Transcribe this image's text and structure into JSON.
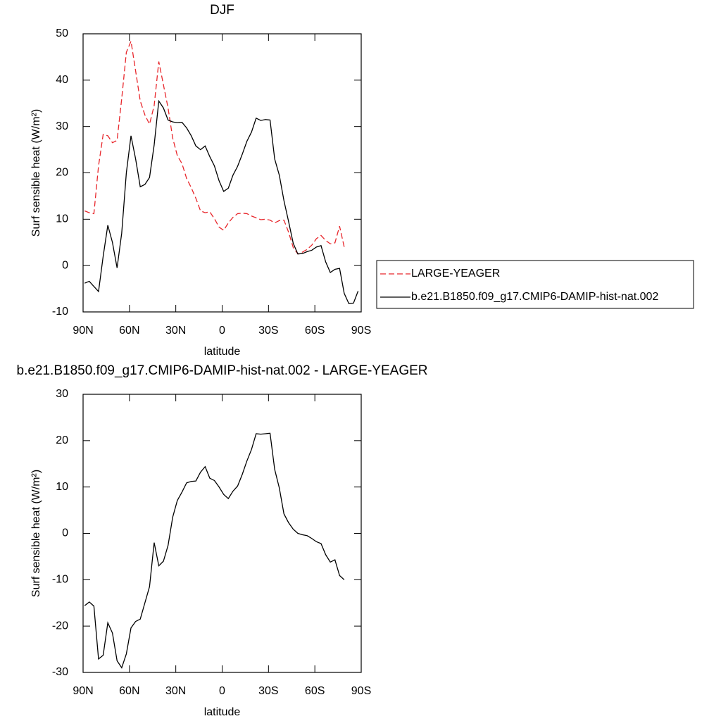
{
  "chart_data": [
    {
      "type": "line",
      "title": "DJF",
      "xlabel": "latitude",
      "ylabel": "Surf sensible heat (W/m²)",
      "x": [
        89,
        86,
        83,
        80,
        77,
        74,
        71,
        68,
        65,
        62,
        59,
        56,
        53,
        50,
        47,
        44,
        41,
        38,
        35,
        32,
        29,
        26,
        23,
        20,
        17,
        14,
        11,
        8,
        5,
        2,
        -1,
        -4,
        -7,
        -10,
        -13,
        -16,
        -19,
        -22,
        -25,
        -28,
        -31,
        -34,
        -37,
        -40,
        -43,
        -46,
        -49,
        -52,
        -55,
        -58,
        -61,
        -64,
        -67,
        -70,
        -73,
        -76,
        -79,
        -82,
        -85,
        -88
      ],
      "series": [
        {
          "name": "LARGE-YEAGER",
          "color": "#e8262b",
          "dash": true,
          "values": [
            11.8,
            11.4,
            11.2,
            21.5,
            28.3,
            28,
            26.5,
            27,
            36,
            46,
            48.4,
            42,
            35.5,
            32.5,
            30.5,
            34.5,
            44,
            39,
            34,
            27.5,
            23.7,
            22,
            18.8,
            16.8,
            14.5,
            11.8,
            11.4,
            11.6,
            10.1,
            8.3,
            7.6,
            9.2,
            10.4,
            11.2,
            11.3,
            11.2,
            10.7,
            10.3,
            9.9,
            10,
            9.8,
            9.2,
            9.7,
            9.8,
            7.2,
            3.9,
            2.5,
            2.9,
            3.5,
            4.4,
            5.8,
            6.5,
            5.4,
            4.7,
            4.9,
            8.5,
            4,
            null,
            null,
            null
          ]
        },
        {
          "name": "b.e21.B1850.f09_g17.CMIP6-DAMIP-hist-nat.002",
          "color": "#000000",
          "dash": false,
          "values": [
            -3.8,
            -3.4,
            -4.5,
            -5.6,
            2,
            8.7,
            5,
            -0.5,
            7,
            20,
            28,
            23,
            17,
            17.5,
            19,
            26,
            35.5,
            34,
            31.4,
            31,
            30.8,
            30.9,
            29.7,
            28,
            25.8,
            25,
            25.8,
            23.5,
            21.5,
            18.3,
            16,
            16.7,
            19.5,
            21.4,
            24,
            26.8,
            28.8,
            31.8,
            31.3,
            31.5,
            31.4,
            23,
            19.5,
            14,
            9.5,
            4.8,
            2.5,
            2.6,
            3,
            3.3,
            4,
            4.3,
            0.8,
            -1.5,
            -0.8,
            -0.6,
            -6,
            -8.2,
            -8.1,
            -5.5
          ]
        }
      ],
      "xlim": [
        90,
        -90
      ],
      "xticks": [
        {
          "value": 90,
          "label": "90N"
        },
        {
          "value": 60,
          "label": "60N"
        },
        {
          "value": 30,
          "label": "30N"
        },
        0,
        {
          "value": -30,
          "label": "30S"
        },
        {
          "value": -60,
          "label": "60S"
        },
        {
          "value": -90,
          "label": "90S"
        }
      ],
      "ylim": [
        -10,
        50
      ],
      "yticks": [
        -10,
        0,
        10,
        20,
        30,
        40,
        50
      ],
      "legend": "right"
    },
    {
      "type": "line",
      "title": "b.e21.B1850.f09_g17.CMIP6-DAMIP-hist-nat.002 - LARGE-YEAGER",
      "xlabel": "latitude",
      "ylabel": "Surf sensible heat (W/m²)",
      "x": [
        89,
        86,
        83,
        80,
        77,
        74,
        71,
        68,
        65,
        62,
        59,
        56,
        53,
        50,
        47,
        44,
        41,
        38,
        35,
        32,
        29,
        26,
        23,
        20,
        17,
        14,
        11,
        8,
        5,
        2,
        -1,
        -4,
        -7,
        -10,
        -13,
        -16,
        -19,
        -22,
        -25,
        -28,
        -31,
        -34,
        -37,
        -40,
        -43,
        -46,
        -49,
        -52,
        -55,
        -58,
        -61,
        -64,
        -67,
        -70,
        -73,
        -76,
        -79,
        -82,
        -85,
        -88
      ],
      "values": [
        -15.6,
        -14.8,
        -15.7,
        -27.1,
        -26.3,
        -19.3,
        -21.5,
        -27.5,
        -29,
        -26,
        -20.4,
        -19,
        -18.5,
        -15,
        -11.5,
        -2,
        -7,
        -6,
        -2.6,
        3.5,
        7.1,
        8.9,
        10.9,
        11.2,
        11.3,
        13.2,
        14.4,
        11.9,
        11.4,
        10,
        8.4,
        7.5,
        9.1,
        10.2,
        12.7,
        15.6,
        18.1,
        21.5,
        21.4,
        21.5,
        21.6,
        13.8,
        9.8,
        4.2,
        2.3,
        0.9,
        0,
        -0.3,
        -0.5,
        -1.1,
        -1.8,
        -2.2,
        -4.6,
        -6.2,
        -5.7,
        -9.1,
        -10,
        null,
        null,
        null
      ],
      "color": "#000000",
      "xlim": [
        90,
        -90
      ],
      "xticks": [
        {
          "value": 90,
          "label": "90N"
        },
        {
          "value": 60,
          "label": "60N"
        },
        {
          "value": 30,
          "label": "30N"
        },
        0,
        {
          "value": -30,
          "label": "30S"
        },
        {
          "value": -60,
          "label": "60S"
        },
        {
          "value": -90,
          "label": "90S"
        }
      ],
      "ylim": [
        -30,
        30
      ],
      "yticks": [
        -30,
        -20,
        -10,
        0,
        10,
        20,
        30
      ]
    }
  ]
}
